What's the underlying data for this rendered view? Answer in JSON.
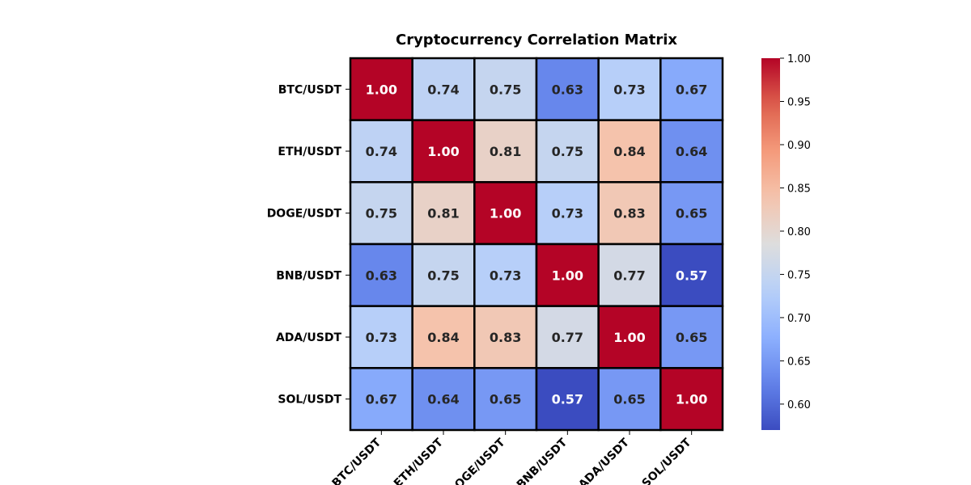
{
  "chart_data": {
    "type": "heatmap",
    "title": "Cryptocurrency Correlation Matrix",
    "row_labels": [
      "BTC/USDT",
      "ETH/USDT",
      "DOGE/USDT",
      "BNB/USDT",
      "ADA/USDT",
      "SOL/USDT"
    ],
    "col_labels": [
      "BTC/USDT",
      "ETH/USDT",
      "DOGE/USDT",
      "BNB/USDT",
      "ADA/USDT",
      "SOL/USDT"
    ],
    "values": [
      [
        1.0,
        0.74,
        0.75,
        0.63,
        0.73,
        0.67
      ],
      [
        0.74,
        1.0,
        0.81,
        0.75,
        0.84,
        0.64
      ],
      [
        0.75,
        0.81,
        1.0,
        0.73,
        0.83,
        0.65
      ],
      [
        0.63,
        0.75,
        0.73,
        1.0,
        0.77,
        0.57
      ],
      [
        0.73,
        0.84,
        0.83,
        0.77,
        1.0,
        0.65
      ],
      [
        0.67,
        0.64,
        0.65,
        0.57,
        0.65,
        1.0
      ]
    ],
    "colormap": "coolwarm",
    "color_range": [
      0.57,
      1.0
    ],
    "colorbar_ticks": [
      "0.60",
      "0.65",
      "0.70",
      "0.75",
      "0.80",
      "0.85",
      "0.90",
      "0.95",
      "1.00"
    ],
    "annotated": true,
    "legend_position": "right"
  }
}
